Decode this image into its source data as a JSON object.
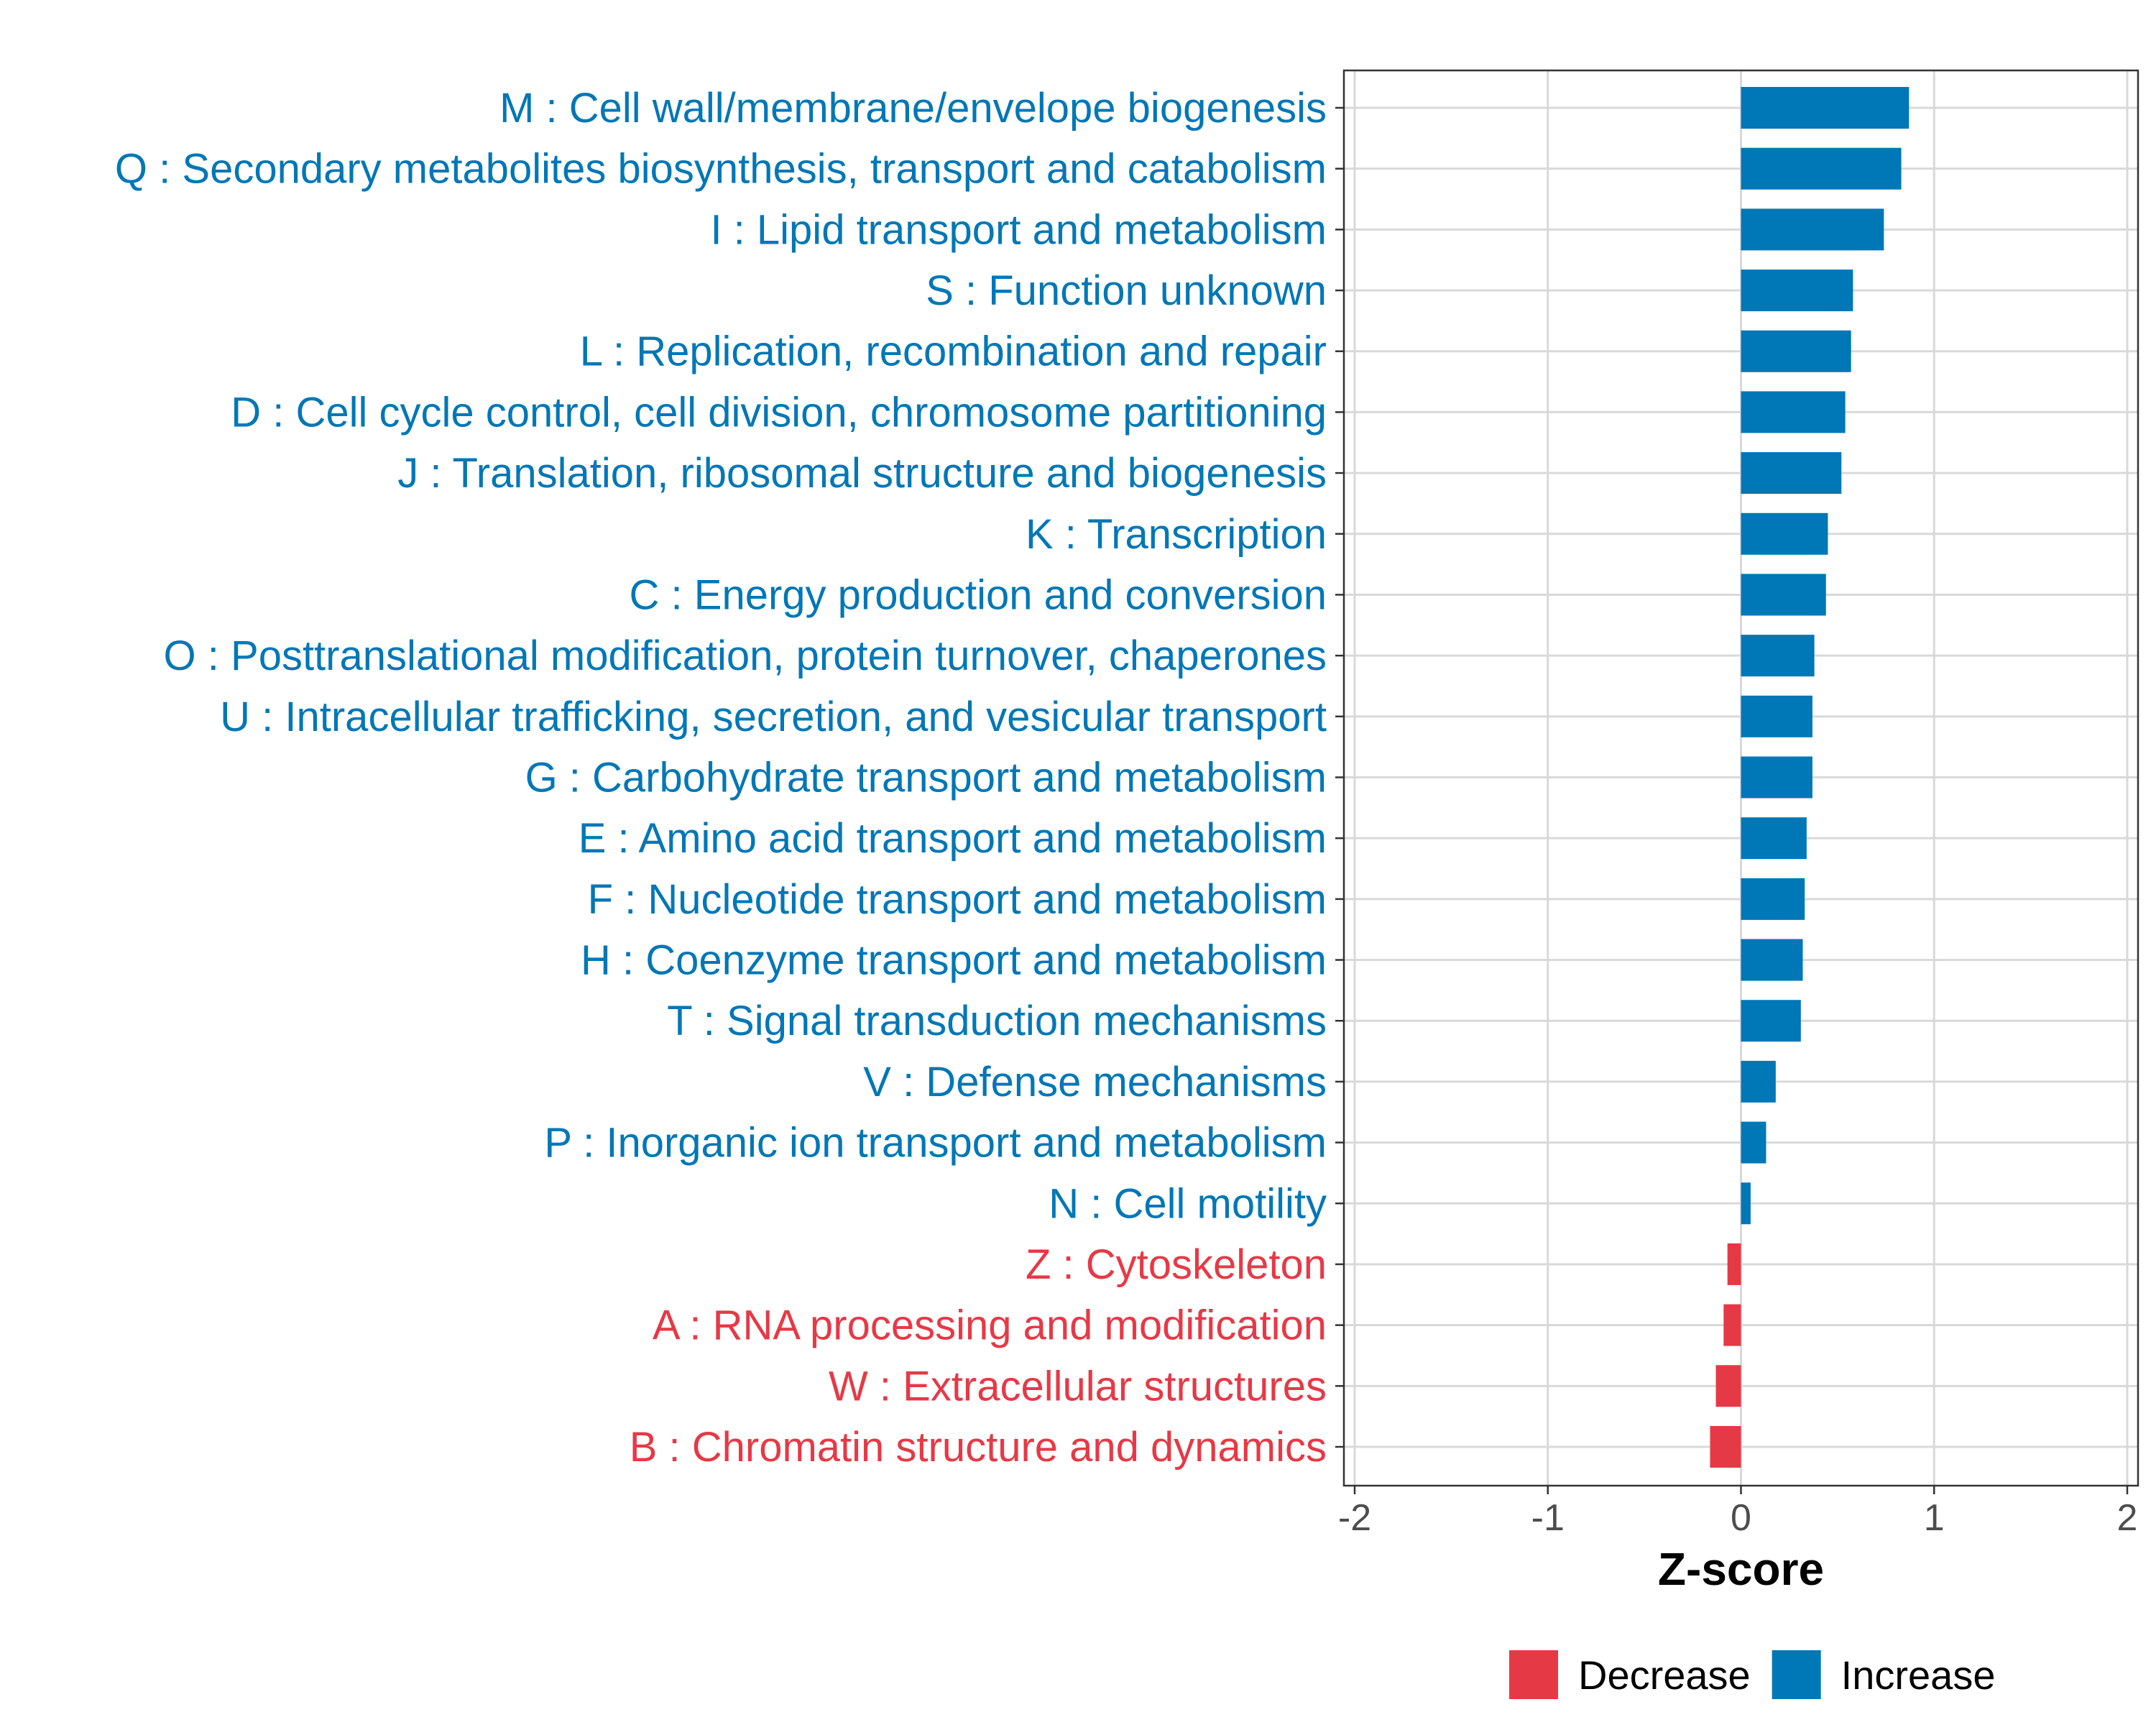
{
  "chart_data": {
    "type": "bar",
    "orientation": "horizontal",
    "xlabel": "Z-score",
    "ylabel": "",
    "xlim": [
      -2,
      2
    ],
    "xticks": [
      -2,
      -1,
      0,
      1,
      2
    ],
    "xtick_labels": [
      "-2",
      "-1",
      "0",
      "1",
      "2"
    ],
    "grid": true,
    "legend_position": "bottom",
    "legend": [
      {
        "name": "Decrease",
        "color": "#E63946"
      },
      {
        "name": "Increase",
        "color": "#0077B6"
      }
    ],
    "categories": [
      "M : Cell wall/membrane/envelope biogenesis",
      "Q : Secondary metabolites biosynthesis, transport and catabolism",
      "I : Lipid transport and metabolism",
      "S : Function unknown",
      "L : Replication, recombination and repair",
      "D : Cell cycle control, cell division, chromosome partitioning",
      "J : Translation, ribosomal structure and biogenesis",
      "K : Transcription",
      "C : Energy production and conversion",
      "O : Posttranslational modification, protein turnover, chaperones",
      "U : Intracellular trafficking, secretion, and vesicular transport",
      "G : Carbohydrate transport and metabolism",
      "E : Amino acid transport and metabolism",
      "F : Nucleotide transport and metabolism",
      "H : Coenzyme transport and metabolism",
      "T : Signal transduction mechanisms",
      "V : Defense mechanisms",
      "P : Inorganic ion transport and metabolism",
      "N : Cell motility",
      "Z : Cytoskeleton",
      "A : RNA processing and modification",
      "W : Extracellular structures",
      "B : Chromatin structure and dynamics"
    ],
    "values": [
      0.87,
      0.83,
      0.74,
      0.58,
      0.57,
      0.54,
      0.52,
      0.45,
      0.44,
      0.38,
      0.37,
      0.37,
      0.34,
      0.33,
      0.32,
      0.31,
      0.18,
      0.13,
      0.05,
      -0.07,
      -0.09,
      -0.13,
      -0.16
    ],
    "groups": [
      "Increase",
      "Increase",
      "Increase",
      "Increase",
      "Increase",
      "Increase",
      "Increase",
      "Increase",
      "Increase",
      "Increase",
      "Increase",
      "Increase",
      "Increase",
      "Increase",
      "Increase",
      "Increase",
      "Increase",
      "Increase",
      "Increase",
      "Decrease",
      "Decrease",
      "Decrease",
      "Decrease"
    ]
  }
}
